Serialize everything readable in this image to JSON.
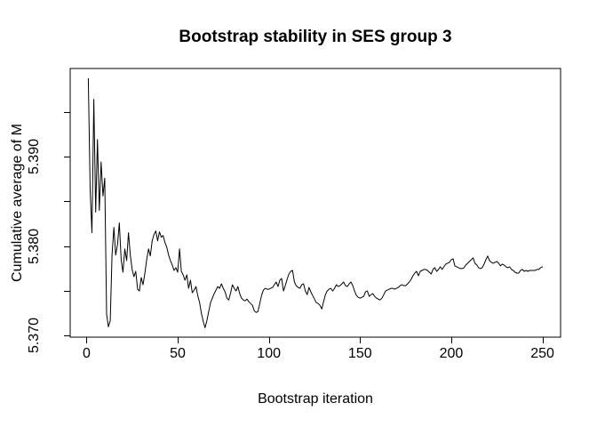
{
  "chart_data": {
    "type": "line",
    "title": "Bootstrap stability in SES group 3",
    "xlabel": "Bootstrap iteration",
    "ylabel": "Cumulative average of M",
    "legend": "none",
    "grid": false,
    "line_color": "#000000",
    "background_color": "#ffffff",
    "text_color": "#000000",
    "xlim": [
      -8.96,
      259.96
    ],
    "ylim": [
      5.36985,
      5.39983
    ],
    "x_ticks": [
      {
        "value": 0,
        "label": "0"
      },
      {
        "value": 50,
        "label": "50"
      },
      {
        "value": 100,
        "label": "100"
      },
      {
        "value": 150,
        "label": "150"
      },
      {
        "value": 200,
        "label": "200"
      },
      {
        "value": 250,
        "label": "250"
      }
    ],
    "y_ticks": [
      {
        "value": 5.37,
        "label": "5.370"
      },
      {
        "value": 5.38,
        "label": "5.380"
      },
      {
        "value": 5.39,
        "label": "5.390"
      }
    ],
    "y_minor_ticks": [
      5.375,
      5.385,
      5.395
    ],
    "x": {
      "from": 1,
      "to": 250,
      "step": 1
    },
    "values": [
      5.3987,
      5.3862,
      5.3815,
      5.3964,
      5.3838,
      5.3919,
      5.384,
      5.3894,
      5.3856,
      5.3876,
      5.3724,
      5.371,
      5.3717,
      5.379,
      5.3821,
      5.379,
      5.3802,
      5.3826,
      5.3785,
      5.3771,
      5.3797,
      5.3784,
      5.3815,
      5.379,
      5.3774,
      5.3766,
      5.3772,
      5.3752,
      5.375,
      5.3765,
      5.3757,
      5.377,
      5.3785,
      5.3797,
      5.3789,
      5.3806,
      5.3813,
      5.3817,
      5.3806,
      5.3816,
      5.381,
      5.3812,
      5.3804,
      5.3799,
      5.379,
      5.3784,
      5.3779,
      5.3773,
      5.3776,
      5.3771,
      5.3797,
      5.3772,
      5.3768,
      5.3762,
      5.3768,
      5.3753,
      5.3762,
      5.3748,
      5.3751,
      5.3755,
      5.3745,
      5.3737,
      5.3725,
      5.3716,
      5.3709,
      5.3717,
      5.3727,
      5.3737,
      5.3742,
      5.3747,
      5.3751,
      5.3755,
      5.3753,
      5.3758,
      5.3753,
      5.3749,
      5.3742,
      5.374,
      5.3748,
      5.3757,
      5.3753,
      5.375,
      5.3755,
      5.3747,
      5.3742,
      5.374,
      5.3739,
      5.3741,
      5.3738,
      5.3736,
      5.3734,
      5.3728,
      5.3726,
      5.3727,
      5.3736,
      5.3745,
      5.3751,
      5.3753,
      5.3752,
      5.3752,
      5.3753,
      5.3754,
      5.3757,
      5.376,
      5.3755,
      5.3762,
      5.3764,
      5.375,
      5.3756,
      5.3763,
      5.3769,
      5.3772,
      5.3773,
      5.376,
      5.3756,
      5.3754,
      5.3753,
      5.3757,
      5.3758,
      5.375,
      5.3746,
      5.3754,
      5.3749,
      5.3745,
      5.3741,
      5.3737,
      5.3736,
      5.3734,
      5.373,
      5.3738,
      5.3746,
      5.375,
      5.3752,
      5.3753,
      5.375,
      5.3753,
      5.3757,
      5.3755,
      5.3756,
      5.3758,
      5.376,
      5.3756,
      5.3755,
      5.3758,
      5.376,
      5.3756,
      5.375,
      5.3745,
      5.3743,
      5.3742,
      5.3743,
      5.3744,
      5.3749,
      5.375,
      5.3744,
      5.3746,
      5.3747,
      5.3744,
      5.3742,
      5.3741,
      5.374,
      5.3742,
      5.3746,
      5.375,
      5.3751,
      5.3752,
      5.3753,
      5.3753,
      5.3752,
      5.3753,
      5.3754,
      5.3756,
      5.3757,
      5.3756,
      5.3756,
      5.3758,
      5.376,
      5.3763,
      5.3767,
      5.377,
      5.3772,
      5.3767,
      5.3772,
      5.3773,
      5.3774,
      5.3774,
      5.3773,
      5.3771,
      5.3769,
      5.3774,
      5.3776,
      5.3772,
      5.3774,
      5.3777,
      5.3774,
      5.3777,
      5.378,
      5.3781,
      5.3782,
      5.3785,
      5.3786,
      5.3778,
      5.3777,
      5.3776,
      5.3775,
      5.3775,
      5.3776,
      5.3779,
      5.3781,
      5.3783,
      5.3785,
      5.3787,
      5.3781,
      5.3779,
      5.3776,
      5.3775,
      5.3776,
      5.378,
      5.3785,
      5.3789,
      5.3784,
      5.3782,
      5.3781,
      5.3782,
      5.3783,
      5.3781,
      5.3778,
      5.378,
      5.3779,
      5.3777,
      5.3776,
      5.3777,
      5.3774,
      5.3773,
      5.3771,
      5.377,
      5.377,
      5.3773,
      5.3774,
      5.3772,
      5.3773,
      5.3772,
      5.3773,
      5.3773,
      5.3773,
      5.3773,
      5.3774,
      5.3774,
      5.3776,
      5.3777
    ]
  }
}
